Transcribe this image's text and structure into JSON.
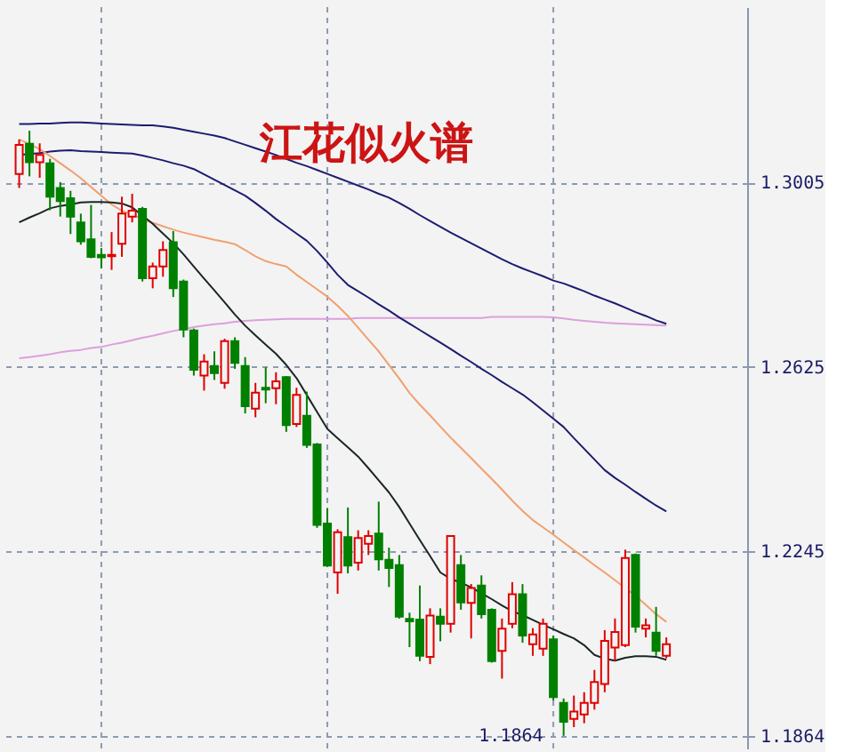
{
  "chart_data": {
    "type": "candlestick",
    "title": "江花似火谱",
    "categories": [
      null,
      null,
      null,
      null,
      null,
      null,
      null,
      null,
      null,
      null,
      null,
      null,
      null,
      null,
      null,
      null,
      null,
      null,
      null,
      null,
      null,
      null,
      null,
      null,
      null,
      null,
      null,
      null,
      null,
      null,
      null,
      null,
      null,
      null,
      null,
      null,
      null,
      null,
      null,
      null,
      null,
      null,
      null,
      null,
      null,
      null,
      null,
      null,
      null,
      null,
      null,
      null,
      null,
      null,
      null,
      null,
      null,
      null,
      null,
      null,
      null,
      null,
      null,
      null
    ],
    "ohlc": [
      [
        1.3023,
        1.3094,
        1.2994,
        1.3083
      ],
      [
        1.3085,
        1.3112,
        1.3018,
        1.3047
      ],
      [
        1.3047,
        1.3086,
        1.3015,
        1.3062
      ],
      [
        1.3045,
        1.3054,
        1.2948,
        1.2976
      ],
      [
        1.2994,
        1.3006,
        1.2935,
        1.2967
      ],
      [
        1.2973,
        1.2988,
        1.2899,
        1.2935
      ],
      [
        1.2923,
        1.2941,
        1.2877,
        1.2884
      ],
      [
        1.2888,
        1.2959,
        1.2849,
        1.2852
      ],
      [
        1.2856,
        1.287,
        1.2828,
        1.2851
      ],
      [
        1.2853,
        1.2903,
        1.2825,
        1.2856
      ],
      [
        1.2879,
        1.2976,
        1.2852,
        1.2941
      ],
      [
        1.2935,
        1.2982,
        1.2923,
        1.2947
      ],
      [
        1.2951,
        1.2955,
        1.2801,
        1.2808
      ],
      [
        1.2808,
        1.284,
        1.2787,
        1.2832
      ],
      [
        1.2832,
        1.2884,
        1.2811,
        1.2866
      ],
      [
        1.2882,
        1.2905,
        1.2769,
        1.2787
      ],
      [
        1.2801,
        1.2805,
        1.2686,
        1.2702
      ],
      [
        1.27,
        1.2704,
        1.2607,
        1.2619
      ],
      [
        1.2607,
        1.2651,
        1.2576,
        1.2636
      ],
      [
        1.2627,
        1.2657,
        1.2598,
        1.2612
      ],
      [
        1.2592,
        1.2683,
        1.258,
        1.2678
      ],
      [
        1.2678,
        1.2686,
        1.2621,
        1.2633
      ],
      [
        1.2627,
        1.2645,
        1.2529,
        1.2544
      ],
      [
        1.2539,
        1.2592,
        1.2521,
        1.2572
      ],
      [
        1.2582,
        1.2624,
        1.255,
        1.2578
      ],
      [
        1.2581,
        1.2614,
        1.2548,
        1.2595
      ],
      [
        1.2604,
        1.2606,
        1.2491,
        1.2505
      ],
      [
        1.2507,
        1.2582,
        1.2501,
        1.2567
      ],
      [
        1.2524,
        1.2574,
        1.2458,
        1.2464
      ],
      [
        1.2465,
        1.2468,
        1.2293,
        1.2299
      ],
      [
        1.2302,
        1.2334,
        1.2213,
        1.2215
      ],
      [
        1.2201,
        1.229,
        1.2157,
        1.2284
      ],
      [
        1.2274,
        1.2335,
        1.2199,
        1.2215
      ],
      [
        1.2221,
        1.2288,
        1.2205,
        1.2272
      ],
      [
        1.226,
        1.2288,
        1.2237,
        1.2276
      ],
      [
        1.2281,
        1.2347,
        1.2205,
        1.2228
      ],
      [
        1.2227,
        1.2252,
        1.2171,
        1.221
      ],
      [
        1.2216,
        1.2237,
        1.2106,
        1.211
      ],
      [
        1.2105,
        1.2118,
        1.2047,
        1.21
      ],
      [
        1.2104,
        1.2174,
        1.2018,
        1.2029
      ],
      [
        1.2027,
        1.2127,
        1.2012,
        1.2112
      ],
      [
        1.211,
        1.2127,
        1.2059,
        1.2095
      ],
      [
        1.2095,
        1.2278,
        1.2077,
        1.2276
      ],
      [
        1.2216,
        1.2237,
        1.2124,
        1.2139
      ],
      [
        1.2138,
        1.2177,
        1.2065,
        1.2169
      ],
      [
        1.2174,
        1.2195,
        1.2106,
        1.2115
      ],
      [
        1.2124,
        1.2127,
        1.2015,
        1.2018
      ],
      [
        1.2039,
        1.2106,
        1.1982,
        1.2085
      ],
      [
        1.2095,
        1.2181,
        1.2086,
        1.2156
      ],
      [
        1.2156,
        1.2177,
        1.2056,
        1.2071
      ],
      [
        1.2053,
        1.2086,
        1.2029,
        1.2073
      ],
      [
        1.2044,
        1.2106,
        1.2029,
        1.2095
      ],
      [
        1.2063,
        1.2071,
        1.1937,
        1.1944
      ],
      [
        1.1932,
        1.1941,
        1.1864,
        1.1893
      ],
      [
        1.1899,
        1.1947,
        1.1882,
        1.1914
      ],
      [
        1.1908,
        1.1954,
        1.189,
        1.1932
      ],
      [
        1.1932,
        1.2,
        1.1918,
        1.1975
      ],
      [
        1.1971,
        1.2082,
        1.1954,
        1.206
      ],
      [
        1.2046,
        1.2106,
        1.2018,
        1.2078
      ],
      [
        1.2051,
        1.2248,
        1.2047,
        1.2231
      ],
      [
        1.2237,
        1.224,
        1.2077,
        1.2089
      ],
      [
        1.2085,
        1.2106,
        1.2067,
        1.2092
      ],
      [
        1.2077,
        1.213,
        1.2029,
        1.2039
      ],
      [
        1.2029,
        1.2067,
        1.2024,
        1.2053
      ]
    ],
    "colors": [
      "#e00000",
      "#008000",
      "#e00000",
      "#008000",
      "#008000",
      "#008000",
      "#008000",
      "#008000",
      "#008000",
      "#e00000",
      "#e00000",
      "#e00000",
      "#008000",
      "#e00000",
      "#e00000",
      "#008000",
      "#008000",
      "#008000",
      "#e00000",
      "#008000",
      "#e00000",
      "#008000",
      "#008000",
      "#e00000",
      "#008000",
      "#e00000",
      "#008000",
      "#e00000",
      "#008000",
      "#008000",
      "#008000",
      "#e00000",
      "#008000",
      "#e00000",
      "#e00000",
      "#008000",
      "#008000",
      "#008000",
      "#008000",
      "#008000",
      "#e00000",
      "#008000",
      "#e00000",
      "#008000",
      "#e00000",
      "#008000",
      "#008000",
      "#e00000",
      "#e00000",
      "#008000",
      "#e00000",
      "#e00000",
      "#008000",
      "#008000",
      "#e00000",
      "#e00000",
      "#e00000",
      "#e00000",
      "#e00000",
      "#e00000",
      "#008000",
      "#e00000",
      "#008000",
      "#e00000"
    ],
    "series": [
      {
        "type": "line",
        "color": "#dd9fdd",
        "values": [
          1.2643,
          1.2645,
          1.2648,
          1.2651,
          1.2655,
          1.2658,
          1.266,
          1.2664,
          1.2666,
          1.2671,
          1.2675,
          1.268,
          1.2685,
          1.2689,
          1.2694,
          1.2699,
          1.2703,
          1.2707,
          1.271,
          1.2713,
          1.2715,
          1.2718,
          1.272,
          1.2721,
          1.2722,
          1.2723,
          1.2724,
          1.2724,
          1.2724,
          1.2724,
          1.2724,
          1.2724,
          1.2724,
          1.2726,
          1.2726,
          1.2726,
          1.2726,
          1.2726,
          1.2726,
          1.2726,
          1.2726,
          1.2726,
          1.2726,
          1.2726,
          1.2726,
          1.2726,
          1.2728,
          1.2728,
          1.2728,
          1.2728,
          1.2728,
          1.2728,
          1.2727,
          1.2725,
          1.2722,
          1.272,
          1.2718,
          1.2716,
          1.2715,
          1.2714,
          1.2713,
          1.2712,
          1.2711,
          1.271
        ]
      },
      {
        "type": "line",
        "color": "#1c1c70",
        "values": [
          1.3126,
          1.3126,
          1.3127,
          1.3127,
          1.3128,
          1.3129,
          1.3129,
          1.3128,
          1.3127,
          1.3126,
          1.3125,
          1.3124,
          1.3123,
          1.3123,
          1.3121,
          1.3118,
          1.3114,
          1.311,
          1.3106,
          1.3102,
          1.3097,
          1.309,
          1.3083,
          1.3076,
          1.3069,
          1.3062,
          1.3054,
          1.3046,
          1.3039,
          1.3031,
          1.3023,
          1.3015,
          1.3007,
          1.2999,
          1.2991,
          1.2982,
          1.2974,
          1.2963,
          1.2951,
          1.2938,
          1.2926,
          1.2914,
          1.2902,
          1.2891,
          1.288,
          1.2869,
          1.2858,
          1.2847,
          1.2837,
          1.2828,
          1.282,
          1.2812,
          1.2803,
          1.2797,
          1.2789,
          1.2781,
          1.2772,
          1.2764,
          1.2756,
          1.2747,
          1.2738,
          1.273,
          1.2721,
          1.2714
        ]
      },
      {
        "type": "line",
        "color": "#1c1c70",
        "values": [
          1.3062,
          1.3064,
          1.3066,
          1.3069,
          1.3071,
          1.3072,
          1.307,
          1.3069,
          1.3068,
          1.3067,
          1.3066,
          1.3065,
          1.3061,
          1.3056,
          1.3051,
          1.3045,
          1.304,
          1.3033,
          1.3022,
          1.3011,
          1.3,
          1.2989,
          1.2978,
          1.2963,
          1.2947,
          1.293,
          1.2915,
          1.29,
          1.2885,
          1.2864,
          1.284,
          1.2815,
          1.2794,
          1.2781,
          1.2768,
          1.2754,
          1.2741,
          1.2727,
          1.2714,
          1.2701,
          1.2688,
          1.2675,
          1.2662,
          1.2648,
          1.2635,
          1.2621,
          1.2608,
          1.2594,
          1.2581,
          1.2568,
          1.2552,
          1.2535,
          1.2518,
          1.2501,
          1.2478,
          1.2456,
          1.2434,
          1.2412,
          1.2396,
          1.2382,
          1.2367,
          1.2353,
          1.2339,
          1.2327
        ]
      },
      {
        "type": "line",
        "color": "#f0a070",
        "values": [
          1.3094,
          1.3085,
          1.3074,
          1.306,
          1.3045,
          1.303,
          1.3014,
          1.2996,
          1.2978,
          1.296,
          1.2947,
          1.2939,
          1.293,
          1.2922,
          1.2915,
          1.2908,
          1.2902,
          1.2897,
          1.2892,
          1.2887,
          1.2883,
          1.2878,
          1.2866,
          1.2853,
          1.2843,
          1.2837,
          1.2832,
          1.2815,
          1.28,
          1.2785,
          1.277,
          1.2751,
          1.273,
          1.2706,
          1.2681,
          1.2657,
          1.2629,
          1.2601,
          1.2571,
          1.2547,
          1.2525,
          1.2502,
          1.2479,
          1.2458,
          1.2437,
          1.2415,
          1.2394,
          1.2372,
          1.2349,
          1.2328,
          1.2309,
          1.2294,
          1.2279,
          1.2263,
          1.2247,
          1.2232,
          1.2216,
          1.2201,
          1.2185,
          1.2169,
          1.2153,
          1.2134,
          1.2115,
          1.2099
        ]
      },
      {
        "type": "line",
        "color": "#1a2626",
        "values": [
          1.2923,
          1.2933,
          1.2942,
          1.2952,
          1.2957,
          1.296,
          1.2964,
          1.2965,
          1.2965,
          1.2964,
          1.2962,
          1.2954,
          1.2937,
          1.292,
          1.29,
          1.288,
          1.2857,
          1.2832,
          1.2807,
          1.2783,
          1.2758,
          1.2733,
          1.271,
          1.269,
          1.2671,
          1.2652,
          1.2629,
          1.2602,
          1.2567,
          1.2532,
          1.2497,
          1.2478,
          1.2459,
          1.244,
          1.2416,
          1.2391,
          1.2366,
          1.2336,
          1.2302,
          1.2268,
          1.2235,
          1.2201,
          1.2188,
          1.218,
          1.217,
          1.2158,
          1.2146,
          1.2133,
          1.2121,
          1.2113,
          1.2103,
          1.2093,
          1.2084,
          1.2074,
          1.2065,
          1.2051,
          1.2031,
          1.2023,
          1.2019,
          1.2025,
          1.2028,
          1.2028,
          1.2027,
          1.2021
        ]
      }
    ],
    "ylim": [
      1.1838,
      1.3367
    ],
    "yticks": [
      1.3005,
      1.2625,
      1.2245,
      1.1864
    ],
    "grid": true,
    "tick_labels": "y",
    "annotations": [
      "1.1864"
    ]
  }
}
